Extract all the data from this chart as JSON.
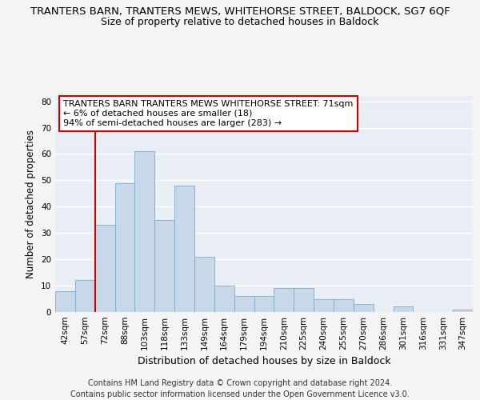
{
  "title1": "TRANTERS BARN, TRANTERS MEWS, WHITEHORSE STREET, BALDOCK, SG7 6QF",
  "title2": "Size of property relative to detached houses in Baldock",
  "xlabel": "Distribution of detached houses by size in Baldock",
  "ylabel": "Number of detached properties",
  "categories": [
    "42sqm",
    "57sqm",
    "72sqm",
    "88sqm",
    "103sqm",
    "118sqm",
    "133sqm",
    "149sqm",
    "164sqm",
    "179sqm",
    "194sqm",
    "210sqm",
    "225sqm",
    "240sqm",
    "255sqm",
    "270sqm",
    "286sqm",
    "301sqm",
    "316sqm",
    "331sqm",
    "347sqm"
  ],
  "values": [
    8,
    12,
    33,
    49,
    61,
    35,
    48,
    21,
    10,
    6,
    6,
    9,
    9,
    5,
    5,
    3,
    0,
    2,
    0,
    0,
    1
  ],
  "bar_color": "#c8d8e8",
  "bar_edge_color": "#7aaac8",
  "vline_x_index": 2,
  "vline_color": "#cc0000",
  "annotation_text": "TRANTERS BARN TRANTERS MEWS WHITEHORSE STREET: 71sqm\n← 6% of detached houses are smaller (18)\n94% of semi-detached houses are larger (283) →",
  "annotation_box_color": "#ffffff",
  "annotation_box_edge": "#cc0000",
  "ylim": [
    0,
    82
  ],
  "yticks": [
    0,
    10,
    20,
    30,
    40,
    50,
    60,
    70,
    80
  ],
  "footer": "Contains HM Land Registry data © Crown copyright and database right 2024.\nContains public sector information licensed under the Open Government Licence v3.0.",
  "background_color": "#e8eef4",
  "fig_background_color": "#f4f4f4",
  "grid_color": "#ffffff",
  "title1_fontsize": 9.5,
  "title2_fontsize": 9,
  "xlabel_fontsize": 9,
  "ylabel_fontsize": 8.5,
  "tick_fontsize": 7.5,
  "annotation_fontsize": 8,
  "footer_fontsize": 7
}
